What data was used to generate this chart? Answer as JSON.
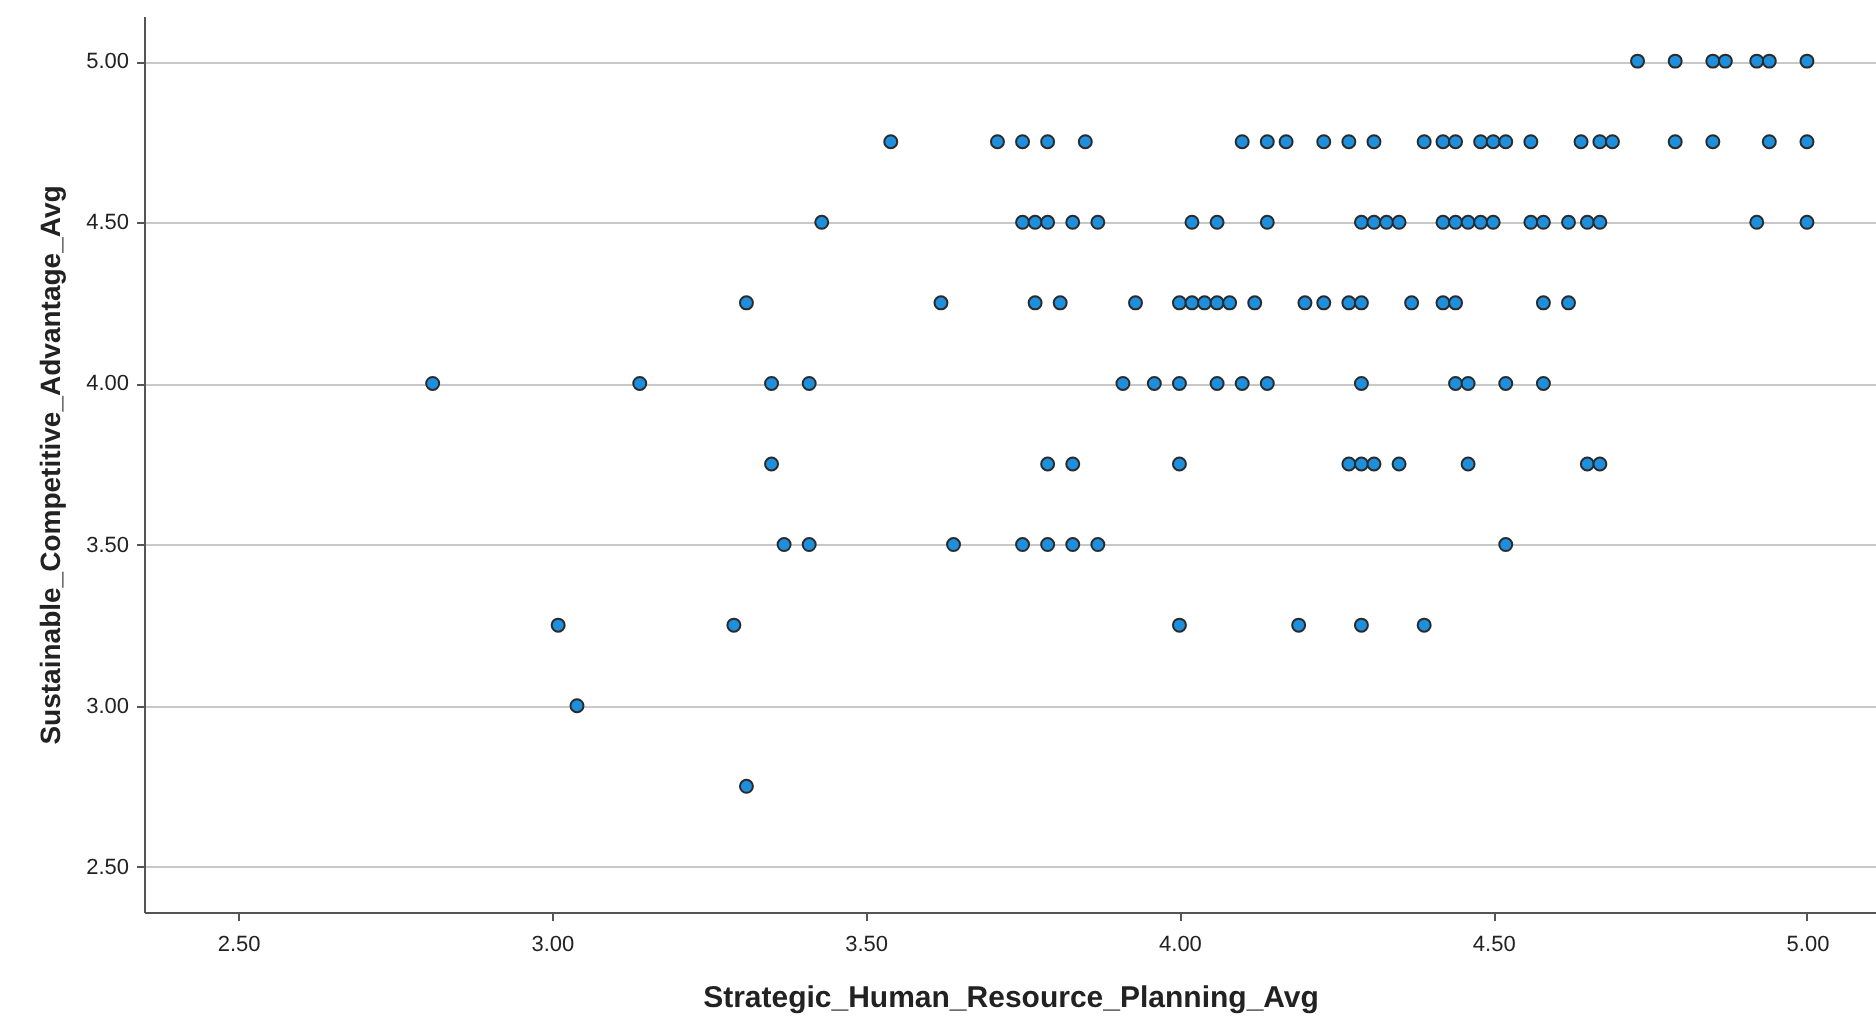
{
  "chart_data": {
    "type": "scatter",
    "xlabel": "Strategic_Human_Resource_Planning_Avg",
    "ylabel": "Sustainable_Competitive_Advantage_Avg",
    "xlim": [
      2.35,
      5.11
    ],
    "ylim": [
      2.36,
      5.14
    ],
    "xticks": [
      {
        "value": 2.5,
        "label": "2.50"
      },
      {
        "value": 3,
        "label": "3.00"
      },
      {
        "value": 3.5,
        "label": "3.50"
      },
      {
        "value": 4,
        "label": "4.00"
      },
      {
        "value": 4.5,
        "label": "4.50"
      },
      {
        "value": 5,
        "label": "5.00"
      }
    ],
    "yticks": [
      {
        "value": 2.5,
        "label": "2.50"
      },
      {
        "value": 3,
        "label": "3.00"
      },
      {
        "value": 3.5,
        "label": "3.50"
      },
      {
        "value": 4,
        "label": "4.00"
      },
      {
        "value": 4.5,
        "label": "4.50"
      },
      {
        "value": 5,
        "label": "5.00"
      }
    ],
    "grid": "y",
    "marker": "circle",
    "series": [
      {
        "color": "#1e8fdc",
        "x": [
          4.73,
          4.79,
          4.85,
          4.87,
          4.92,
          4.94,
          5.0,
          3.54,
          3.71,
          3.75,
          3.79,
          3.85,
          4.1,
          4.14,
          4.17,
          4.23,
          4.27,
          4.31,
          4.39,
          4.42,
          4.44,
          4.48,
          4.5,
          4.52,
          4.56,
          4.64,
          4.67,
          4.69,
          4.79,
          4.85,
          4.94,
          5.0,
          3.43,
          3.75,
          3.77,
          3.79,
          3.83,
          3.87,
          4.02,
          4.06,
          4.14,
          4.29,
          4.31,
          4.33,
          4.35,
          4.42,
          4.44,
          4.46,
          4.48,
          4.5,
          4.56,
          4.58,
          4.62,
          4.65,
          4.67,
          4.92,
          5.0,
          3.31,
          3.62,
          3.77,
          3.81,
          3.93,
          4.0,
          4.02,
          4.04,
          4.06,
          4.08,
          4.12,
          4.2,
          4.23,
          4.27,
          4.29,
          4.37,
          4.42,
          4.44,
          4.58,
          4.62,
          2.81,
          3.14,
          3.35,
          3.41,
          3.91,
          3.96,
          4.0,
          4.06,
          4.1,
          4.14,
          4.29,
          4.44,
          4.46,
          4.52,
          4.58,
          3.35,
          3.79,
          3.83,
          4.0,
          4.27,
          4.29,
          4.31,
          4.35,
          4.46,
          4.65,
          4.67,
          3.37,
          3.41,
          3.64,
          3.75,
          3.79,
          3.83,
          3.87,
          4.52,
          3.01,
          3.29,
          4.0,
          4.19,
          4.29,
          4.39,
          3.04,
          3.31
        ],
        "values": [
          5,
          5,
          5,
          5,
          5,
          5,
          5,
          4.75,
          4.75,
          4.75,
          4.75,
          4.75,
          4.75,
          4.75,
          4.75,
          4.75,
          4.75,
          4.75,
          4.75,
          4.75,
          4.75,
          4.75,
          4.75,
          4.75,
          4.75,
          4.75,
          4.75,
          4.75,
          4.75,
          4.75,
          4.75,
          4.75,
          4.5,
          4.5,
          4.5,
          4.5,
          4.5,
          4.5,
          4.5,
          4.5,
          4.5,
          4.5,
          4.5,
          4.5,
          4.5,
          4.5,
          4.5,
          4.5,
          4.5,
          4.5,
          4.5,
          4.5,
          4.5,
          4.5,
          4.5,
          4.5,
          4.5,
          4.25,
          4.25,
          4.25,
          4.25,
          4.25,
          4.25,
          4.25,
          4.25,
          4.25,
          4.25,
          4.25,
          4.25,
          4.25,
          4.25,
          4.25,
          4.25,
          4.25,
          4.25,
          4.25,
          4.25,
          4,
          4,
          4,
          4,
          4,
          4,
          4,
          4,
          4,
          4,
          4,
          4,
          4,
          4,
          4,
          3.75,
          3.75,
          3.75,
          3.75,
          3.75,
          3.75,
          3.75,
          3.75,
          3.75,
          3.75,
          3.75,
          3.5,
          3.5,
          3.5,
          3.5,
          3.5,
          3.5,
          3.5,
          3.5,
          3.25,
          3.25,
          3.25,
          3.25,
          3.25,
          3.25,
          3,
          2.75
        ]
      }
    ]
  }
}
